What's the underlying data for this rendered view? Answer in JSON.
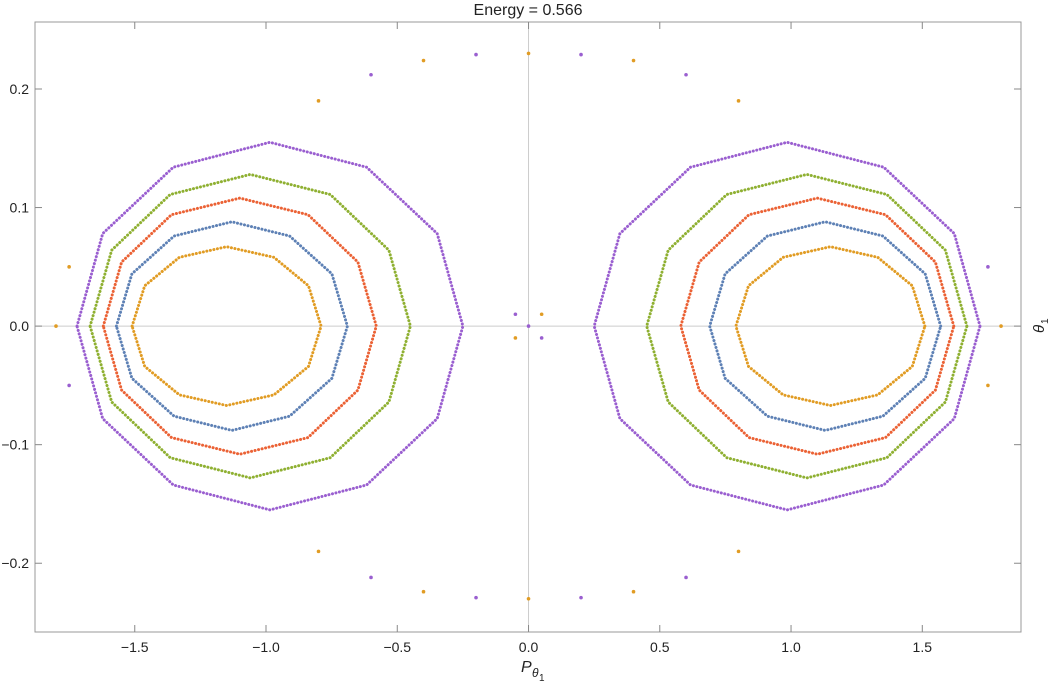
{
  "chart_data": {
    "type": "line",
    "title": "Energy = 0.566",
    "x_label": "P",
    "x_label_sub": "θ",
    "x_label_subsub": "1",
    "y_label": "θ",
    "y_label_sub": "1",
    "xlim": [
      -1.88,
      1.876
    ],
    "ylim": [
      -0.258,
      0.2565
    ],
    "xticks": [
      {
        "value": -1.5,
        "label": "−1.5"
      },
      {
        "value": -1.0,
        "label": "−1.0"
      },
      {
        "value": -0.5,
        "label": "−0.5"
      },
      {
        "value": 0,
        "label": "0.0"
      },
      0.5,
      {
        "value": 1.0,
        "label": "1.0"
      },
      1.5
    ],
    "yticks": [
      {
        "value": -0.2,
        "label": "−0.2"
      },
      {
        "value": -0.1,
        "label": "−0.1"
      },
      {
        "value": 0,
        "label": "0.0"
      },
      0.1,
      0.2
    ],
    "zero_axes": true,
    "series": [
      {
        "color": "#e19c24",
        "x": [
          1.51,
          1.462,
          1.33,
          1.15,
          0.97,
          0.838,
          0.79,
          0.838,
          0.97,
          1.15,
          1.33,
          1.462,
          1.51
        ],
        "values": [
          0,
          0.034,
          0.058,
          0.067,
          0.058,
          0.034,
          0,
          -0.034,
          -0.058,
          -0.067,
          -0.058,
          -0.034,
          0
        ]
      },
      {
        "color": "#5e81b5",
        "x": [
          1.57,
          1.511,
          1.35,
          1.13,
          0.91,
          0.749,
          0.69,
          0.749,
          0.91,
          1.13,
          1.35,
          1.511,
          1.57
        ],
        "values": [
          0,
          0.044,
          0.076,
          0.088,
          0.076,
          0.044,
          0,
          -0.044,
          -0.076,
          -0.088,
          -0.076,
          -0.044,
          0
        ]
      },
      {
        "color": "#eb6235",
        "x": [
          1.62,
          1.55,
          1.36,
          1.1,
          0.84,
          0.65,
          0.58,
          0.65,
          0.84,
          1.1,
          1.36,
          1.55,
          1.62
        ],
        "values": [
          0,
          0.054,
          0.094,
          0.108,
          0.094,
          0.054,
          0,
          -0.054,
          -0.094,
          -0.108,
          -0.094,
          -0.054,
          0
        ]
      },
      {
        "color": "#8fb032",
        "x": [
          1.67,
          1.588,
          1.365,
          1.06,
          0.755,
          0.532,
          0.45,
          0.532,
          0.755,
          1.06,
          1.365,
          1.588,
          1.67
        ],
        "values": [
          0,
          0.064,
          0.111,
          0.128,
          0.111,
          0.064,
          0,
          -0.064,
          -0.111,
          -0.128,
          -0.111,
          -0.064,
          0
        ]
      },
      {
        "color": "#9a5fd0",
        "x": [
          1.72,
          1.622,
          1.353,
          0.985,
          0.617,
          0.348,
          0.25,
          0.348,
          0.617,
          0.985,
          1.353,
          1.622,
          1.72
        ],
        "values": [
          0,
          0.078,
          0.134,
          0.155,
          0.134,
          0.078,
          0,
          -0.078,
          -0.134,
          -0.155,
          -0.134,
          -0.078,
          0
        ]
      },
      {
        "color": "#e19c24",
        "x": [
          -1.51,
          -1.462,
          -1.33,
          -1.15,
          -0.97,
          -0.838,
          -0.79,
          -0.838,
          -0.97,
          -1.15,
          -1.33,
          -1.462,
          -1.51
        ],
        "values": [
          0,
          0.034,
          0.058,
          0.067,
          0.058,
          0.034,
          0,
          -0.034,
          -0.058,
          -0.067,
          -0.058,
          -0.034,
          0
        ]
      },
      {
        "color": "#5e81b5",
        "x": [
          -1.57,
          -1.511,
          -1.35,
          -1.13,
          -0.91,
          -0.749,
          -0.69,
          -0.749,
          -0.91,
          -1.13,
          -1.35,
          -1.511,
          -1.57
        ],
        "values": [
          0,
          0.044,
          0.076,
          0.088,
          0.076,
          0.044,
          0,
          -0.044,
          -0.076,
          -0.088,
          -0.076,
          -0.044,
          0
        ]
      },
      {
        "color": "#eb6235",
        "x": [
          -1.62,
          -1.55,
          -1.36,
          -1.1,
          -0.84,
          -0.65,
          -0.58,
          -0.65,
          -0.84,
          -1.1,
          -1.36,
          -1.55,
          -1.62
        ],
        "values": [
          0,
          0.054,
          0.094,
          0.108,
          0.094,
          0.054,
          0,
          -0.054,
          -0.094,
          -0.108,
          -0.094,
          -0.054,
          0
        ]
      },
      {
        "color": "#8fb032",
        "x": [
          -1.67,
          -1.588,
          -1.365,
          -1.06,
          -0.755,
          -0.532,
          -0.45,
          -0.532,
          -0.755,
          -1.06,
          -1.365,
          -1.588,
          -1.67
        ],
        "values": [
          0,
          0.064,
          0.111,
          0.128,
          0.111,
          0.064,
          0,
          -0.064,
          -0.111,
          -0.128,
          -0.111,
          -0.064,
          0
        ]
      },
      {
        "color": "#9a5fd0",
        "x": [
          -1.72,
          -1.622,
          -1.353,
          -0.985,
          -0.617,
          -0.348,
          -0.25,
          -0.348,
          -0.617,
          -0.985,
          -1.353,
          -1.622,
          -1.72
        ],
        "values": [
          0,
          0.078,
          0.134,
          0.155,
          0.134,
          0.078,
          0,
          -0.078,
          -0.134,
          -0.155,
          -0.134,
          -0.078,
          0
        ]
      },
      {
        "type": "scatter",
        "color": "#e19c24",
        "x": [
          -0.8,
          -0.4,
          0,
          0.4,
          0.8,
          -0.8,
          -0.4,
          0,
          0.4,
          0.8,
          0.05,
          -0.05,
          -1.8,
          1.8,
          -1.75,
          1.75
        ],
        "values": [
          0.19,
          0.224,
          0.23,
          0.224,
          0.19,
          -0.19,
          -0.224,
          -0.23,
          -0.224,
          -0.19,
          0.01,
          -0.01,
          0,
          0,
          0.05,
          -0.05
        ]
      },
      {
        "type": "scatter",
        "color": "#9a5fd0",
        "x": [
          -0.6,
          -0.2,
          0.2,
          0.6,
          -0.6,
          -0.2,
          0.2,
          0.6,
          0,
          -0.05,
          0.05,
          -1.75,
          1.75
        ],
        "values": [
          0.212,
          0.229,
          0.229,
          0.212,
          -0.212,
          -0.229,
          -0.229,
          -0.212,
          0,
          0.01,
          -0.01,
          -0.05,
          0.05
        ]
      }
    ]
  }
}
